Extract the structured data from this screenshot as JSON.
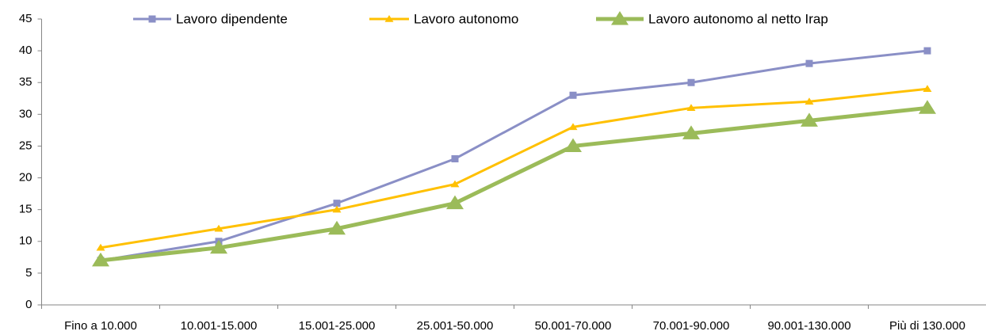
{
  "chart_data": {
    "type": "line",
    "categories": [
      "Fino a 10.000",
      "10.001-15.000",
      "15.001-25.000",
      "25.001-50.000",
      "50.001-70.000",
      "70.001-90.000",
      "90.001-130.000",
      "Più di 130.000"
    ],
    "series": [
      {
        "name": "Lavoro dipendente",
        "color": "#8a8fc6",
        "marker": "square",
        "values": [
          7,
          10,
          16,
          23,
          33,
          35,
          38,
          40
        ]
      },
      {
        "name": "Lavoro autonomo",
        "color": "#ffc000",
        "marker": "triangle",
        "values": [
          9,
          12,
          15,
          19,
          28,
          31,
          32,
          34
        ]
      },
      {
        "name": "Lavoro autonomo al netto Irap",
        "color": "#9bbb59",
        "marker": "large-triangle",
        "values": [
          7,
          9,
          12,
          16,
          25,
          27,
          29,
          31
        ]
      }
    ],
    "ylim": [
      0,
      45
    ],
    "yticks": [
      0,
      5,
      10,
      15,
      20,
      25,
      30,
      35,
      40,
      45
    ],
    "grid": false,
    "legend": "top"
  }
}
